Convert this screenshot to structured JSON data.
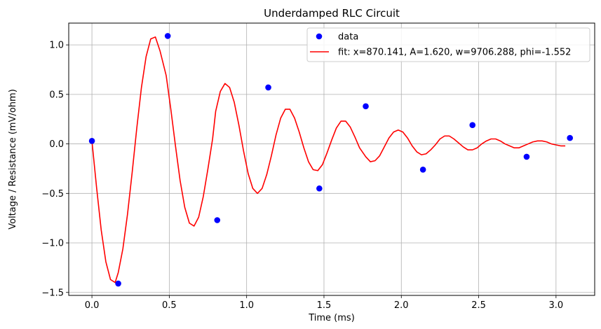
{
  "chart_data": {
    "type": "line",
    "title": "Underdamped RLC Circuit",
    "xlabel": "Time (ms)",
    "ylabel": "Voltage / Resistance (mV/ohm)",
    "xlim": [
      -0.15,
      3.25
    ],
    "ylim": [
      -1.53,
      1.22
    ],
    "xticks": [
      0.0,
      0.5,
      1.0,
      1.5,
      2.0,
      2.5,
      3.0
    ],
    "xtick_labels": [
      "0.0",
      "0.5",
      "1.0",
      "1.5",
      "2.0",
      "2.5",
      "3.0"
    ],
    "yticks": [
      -1.5,
      -1.0,
      -0.5,
      0.0,
      0.5,
      1.0
    ],
    "ytick_labels": [
      "−1.5",
      "−1.0",
      "−0.5",
      "0.0",
      "0.5",
      "1.0"
    ],
    "grid": true,
    "legend_position": "top-right",
    "series": [
      {
        "name": "data",
        "kind": "scatter",
        "color": "#0000ff",
        "x": [
          0.0,
          0.17,
          0.49,
          0.81,
          1.14,
          1.47,
          1.77,
          2.14,
          2.46,
          2.81,
          3.09
        ],
        "y": [
          0.03,
          -1.41,
          1.09,
          -0.77,
          0.57,
          -0.45,
          0.38,
          -0.26,
          0.19,
          -0.13,
          0.06
        ]
      },
      {
        "name": "fit: x=870.141, A=1.620, w=9706.288, phi=-1.552",
        "kind": "line",
        "color": "#ff0000",
        "x": [
          0.0,
          0.03,
          0.06,
          0.09,
          0.12,
          0.15,
          0.17,
          0.2,
          0.23,
          0.26,
          0.29,
          0.32,
          0.35,
          0.38,
          0.41,
          0.44,
          0.48,
          0.51,
          0.54,
          0.57,
          0.6,
          0.63,
          0.66,
          0.69,
          0.72,
          0.75,
          0.78,
          0.8,
          0.83,
          0.86,
          0.89,
          0.92,
          0.95,
          0.98,
          1.01,
          1.04,
          1.07,
          1.1,
          1.13,
          1.16,
          1.19,
          1.22,
          1.25,
          1.28,
          1.31,
          1.34,
          1.37,
          1.4,
          1.43,
          1.46,
          1.49,
          1.52,
          1.55,
          1.58,
          1.61,
          1.64,
          1.67,
          1.7,
          1.73,
          1.77,
          1.8,
          1.83,
          1.86,
          1.89,
          1.92,
          1.95,
          1.98,
          2.01,
          2.04,
          2.07,
          2.1,
          2.13,
          2.16,
          2.19,
          2.22,
          2.25,
          2.28,
          2.31,
          2.34,
          2.37,
          2.4,
          2.43,
          2.46,
          2.49,
          2.52,
          2.55,
          2.58,
          2.61,
          2.64,
          2.67,
          2.7,
          2.73,
          2.76,
          2.79,
          2.82,
          2.85,
          2.88,
          2.91,
          2.94,
          2.97,
          3.0,
          3.03,
          3.06
        ],
        "y": [
          0.03,
          -0.44,
          -0.87,
          -1.19,
          -1.37,
          -1.4,
          -1.3,
          -1.06,
          -0.71,
          -0.29,
          0.16,
          0.57,
          0.88,
          1.06,
          1.08,
          0.94,
          0.69,
          0.35,
          -0.02,
          -0.37,
          -0.64,
          -0.8,
          -0.83,
          -0.74,
          -0.53,
          -0.25,
          0.05,
          0.33,
          0.53,
          0.61,
          0.57,
          0.42,
          0.19,
          -0.07,
          -0.3,
          -0.45,
          -0.5,
          -0.45,
          -0.31,
          -0.12,
          0.09,
          0.26,
          0.35,
          0.35,
          0.26,
          0.12,
          -0.04,
          -0.18,
          -0.26,
          -0.27,
          -0.21,
          -0.09,
          0.04,
          0.16,
          0.23,
          0.23,
          0.17,
          0.07,
          -0.04,
          -0.13,
          -0.18,
          -0.17,
          -0.12,
          -0.03,
          0.06,
          0.12,
          0.14,
          0.12,
          0.06,
          -0.02,
          -0.08,
          -0.11,
          -0.1,
          -0.06,
          -0.01,
          0.05,
          0.08,
          0.08,
          0.05,
          0.01,
          -0.03,
          -0.06,
          -0.06,
          -0.04,
          0.0,
          0.03,
          0.05,
          0.05,
          0.03,
          0.0,
          -0.02,
          -0.04,
          -0.04,
          -0.02,
          0.0,
          0.02,
          0.03,
          0.03,
          0.02,
          0.0,
          -0.01,
          -0.02,
          -0.02
        ]
      }
    ]
  }
}
